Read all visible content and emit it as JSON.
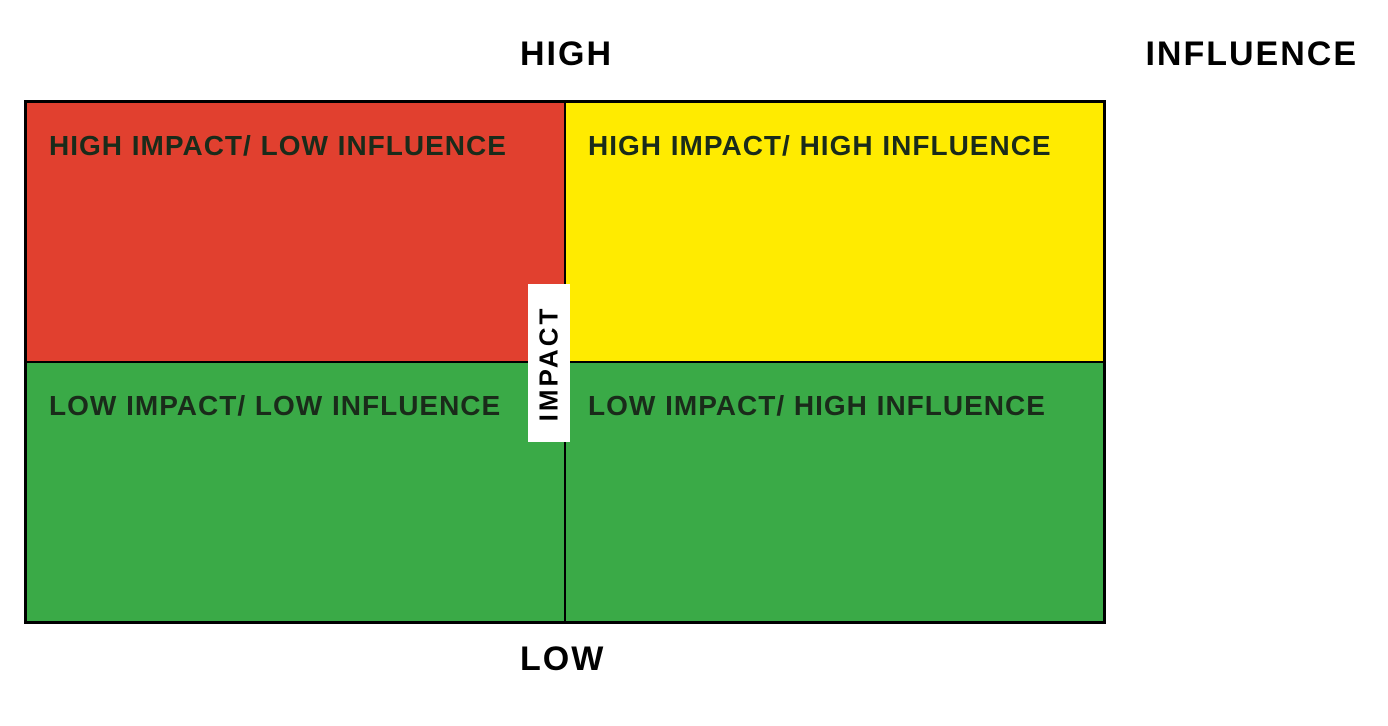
{
  "matrix": {
    "type": "quadrant",
    "axis_labels": {
      "top": "HIGH",
      "right": "INFLUENCE",
      "bottom": "LOW",
      "center_vertical": "IMPACT"
    },
    "quadrants": {
      "top_left": {
        "label": "HIGH IMPACT/ LOW INFLUENCE",
        "background_color": "#e1402f"
      },
      "top_right": {
        "label": "HIGH IMPACT/ HIGH INFLUENCE",
        "background_color": "#ffeb00"
      },
      "bottom_left": {
        "label": "LOW IMPACT/ LOW INFLUENCE",
        "background_color": "#3aaa47"
      },
      "bottom_right": {
        "label": "LOW IMPACT/ HIGH INFLUENCE",
        "background_color": "#3aaa47"
      }
    },
    "border_color": "#000000",
    "text_color": "#1a2b1a",
    "label_fontsize": 28,
    "axis_fontsize": 34,
    "font_weight": 900,
    "background_color": "#ffffff"
  }
}
